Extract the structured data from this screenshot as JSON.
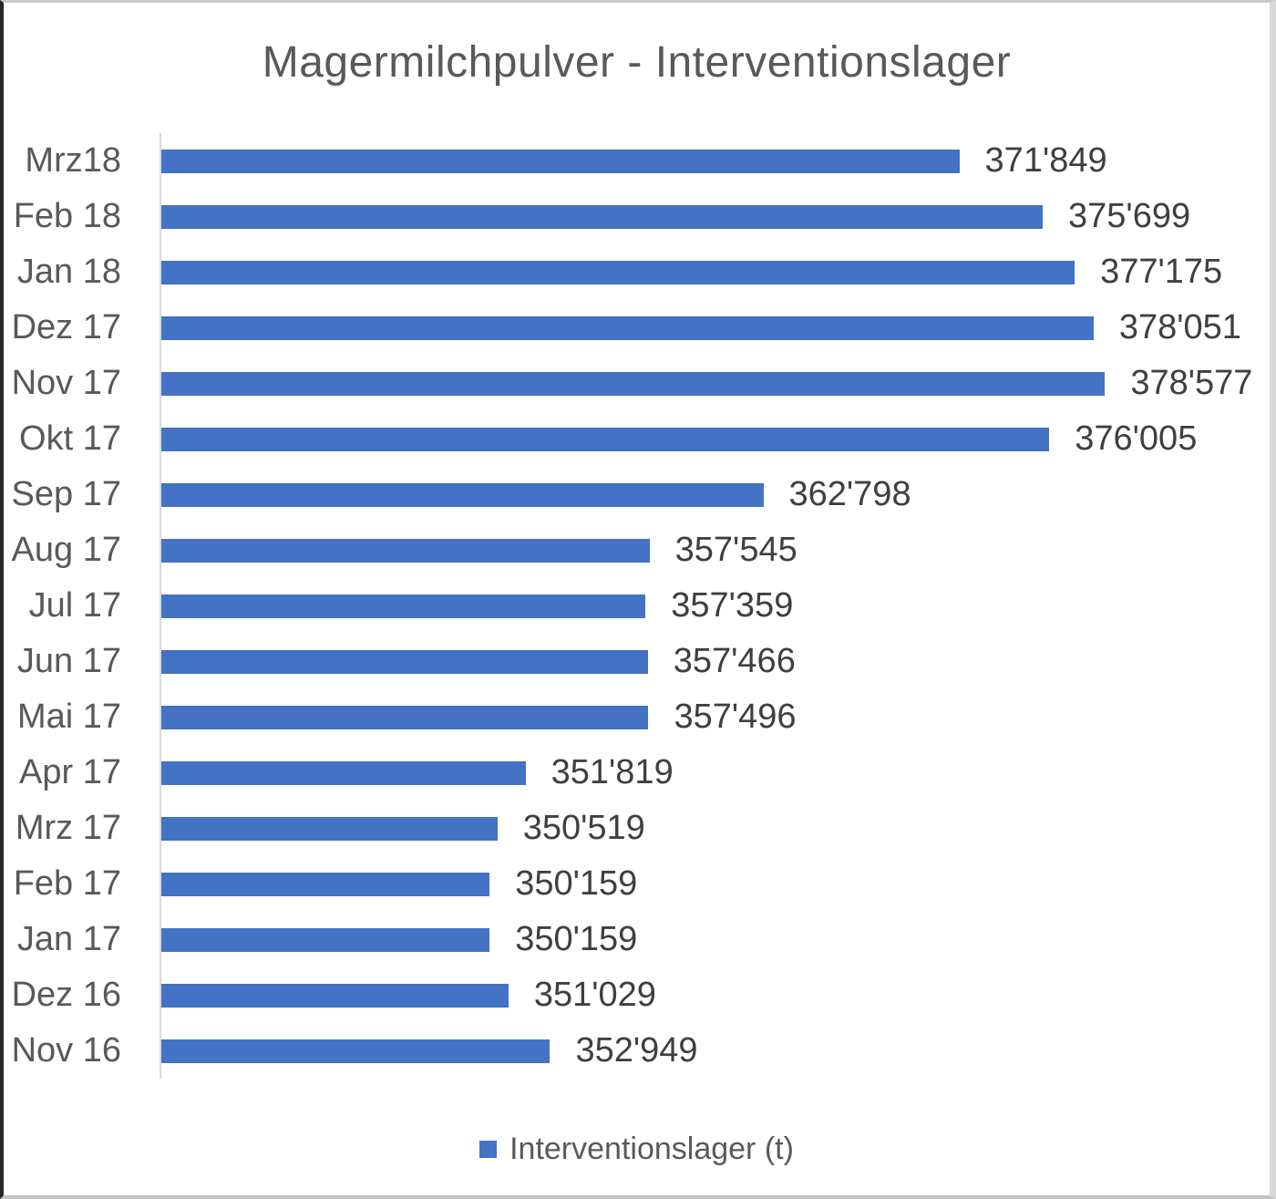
{
  "title": "Magermilchpulver - Interventionslager",
  "legend": {
    "label": "Interventionslager (t)",
    "marker_color": "#4472c4"
  },
  "colors": {
    "bar": "#4472c4",
    "title_text": "#595959",
    "value_text": "#3f3f3f",
    "axis_line": "#d9d9d9"
  },
  "chart_data": {
    "type": "bar",
    "orientation": "horizontal",
    "title": "Magermilchpulver - Interventionslager",
    "xlabel": "",
    "ylabel": "",
    "xlim": [
      335000,
      385000
    ],
    "grid": false,
    "legend_position": "bottom",
    "legend_entries": [
      "Interventionslager (t)"
    ],
    "categories": [
      "Mrz18",
      "Feb 18",
      "Jan 18",
      "Dez 17",
      "Nov 17",
      "Okt 17",
      "Sep 17",
      "Aug 17",
      "Jul 17",
      "Jun 17",
      "Mai 17",
      "Apr 17",
      "Mrz 17",
      "Feb 17",
      "Jan 17",
      "Dez 16",
      "Nov 16"
    ],
    "values": [
      371849,
      375699,
      377175,
      378051,
      378577,
      376005,
      362798,
      357545,
      357359,
      357466,
      357496,
      351819,
      350519,
      350159,
      350159,
      351029,
      352949
    ],
    "value_labels": [
      "371'849",
      "375'699",
      "377'175",
      "378'051",
      "378'577",
      "376'005",
      "362'798",
      "357'545",
      "357'359",
      "357'466",
      "357'496",
      "351'819",
      "350'519",
      "350'159",
      "350'159",
      "351'029",
      "352'949"
    ]
  }
}
